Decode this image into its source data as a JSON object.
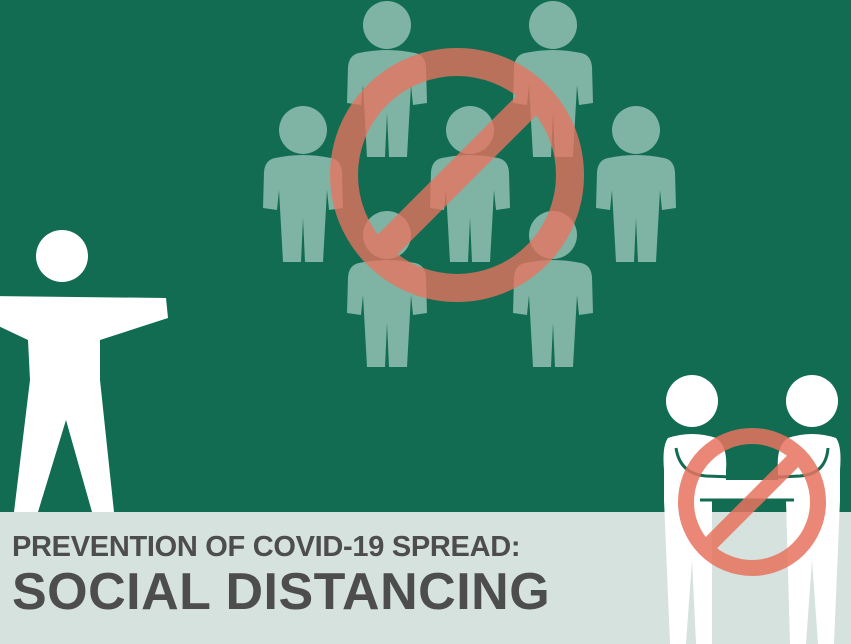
{
  "poster": {
    "subtitle": "PREVENTION OF COVID-19 SPREAD:",
    "title": "SOCIAL DISTANCING"
  },
  "colors": {
    "background_green": "#126c52",
    "footer_band": "#d5e2de",
    "crowd_figures": "#7fb3a4",
    "prohibition_sign": "#e8735f",
    "title_text": "#4d4d4d",
    "figure_white": "#ffffff"
  },
  "icons": [
    "person-arms-out-icon",
    "crowd-icon",
    "prohibition-icon",
    "handshake-icon"
  ]
}
